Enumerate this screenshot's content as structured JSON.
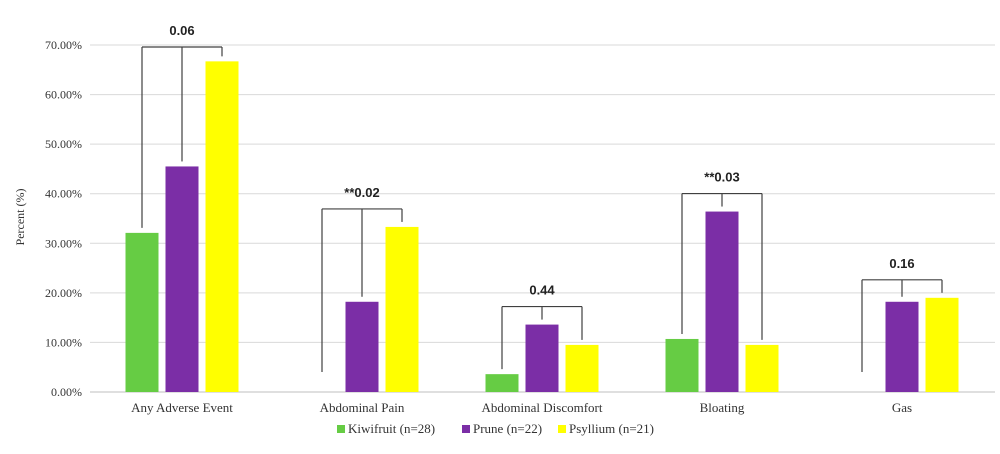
{
  "chart_data": {
    "type": "bar",
    "ylabel": "Percent (%)",
    "ylim": [
      0,
      70
    ],
    "yticks": [
      0,
      10,
      20,
      30,
      40,
      50,
      60,
      70
    ],
    "ytick_labels": [
      "0.00%",
      "10.00%",
      "20.00%",
      "30.00%",
      "40.00%",
      "50.00%",
      "60.00%",
      "70.00%"
    ],
    "categories": [
      "Any Adverse Event",
      "Abdominal Pain",
      "Abdominal Discomfort",
      "Bloating",
      "Gas"
    ],
    "series": [
      {
        "name": "Kiwifruit (n=28)",
        "color": "#66cc44",
        "values": [
          32.1,
          0,
          3.6,
          10.7,
          0
        ]
      },
      {
        "name": "Prune (n=22)",
        "color": "#7b2ea6",
        "values": [
          45.5,
          18.2,
          13.6,
          36.4,
          18.2
        ]
      },
      {
        "name": "Psyllium (n=21)",
        "color": "#ffff00",
        "values": [
          66.7,
          33.3,
          9.5,
          9.5,
          19.0
        ]
      }
    ],
    "annotations": [
      "0.06",
      "**0.02",
      "0.44",
      "**0.03",
      "0.16"
    ],
    "grid": true,
    "legend_position": "bottom"
  }
}
